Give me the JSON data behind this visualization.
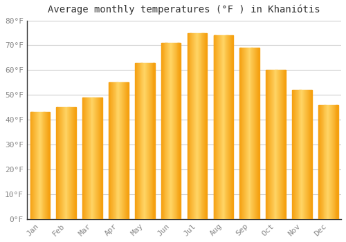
{
  "title": "Average monthly temperatures (°F ) in Khaniótis",
  "months": [
    "Jan",
    "Feb",
    "Mar",
    "Apr",
    "May",
    "Jun",
    "Jul",
    "Aug",
    "Sep",
    "Oct",
    "Nov",
    "Dec"
  ],
  "values": [
    43,
    45,
    49,
    55,
    63,
    71,
    75,
    74,
    69,
    60,
    52,
    46
  ],
  "bar_color_center": "#FFD966",
  "bar_color_edge": "#FFA500",
  "bar_color_main": "#F5A623",
  "ylim": [
    0,
    80
  ],
  "yticks": [
    0,
    10,
    20,
    30,
    40,
    50,
    60,
    70,
    80
  ],
  "ytick_labels": [
    "0°F",
    "10°F",
    "20°F",
    "30°F",
    "40°F",
    "50°F",
    "60°F",
    "70°F",
    "80°F"
  ],
  "background_color": "#FFFFFF",
  "grid_color": "#CCCCCC",
  "title_fontsize": 10,
  "tick_fontsize": 8,
  "font_family": "monospace",
  "tick_color": "#888888",
  "spine_color": "#333333"
}
